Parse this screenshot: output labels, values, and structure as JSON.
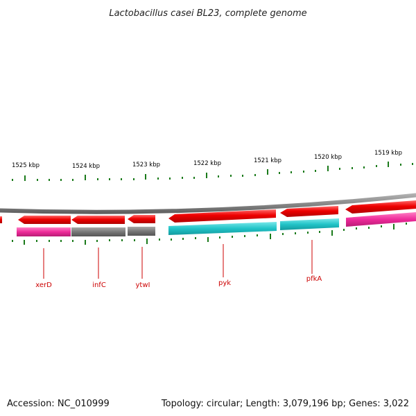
{
  "title": "Lactobacillus casei BL23, complete genome",
  "footer": {
    "accession": "Accession: NC_010999",
    "summary": "Topology: circular; Length: 3,079,196 bp; Genes: 3,022"
  },
  "scale_labels": [
    "1525 kbp",
    "1524 kbp",
    "1523 kbp",
    "1522 kbp",
    "1521 kbp",
    "1520 kbp",
    "1519 kbp"
  ],
  "gene_labels": [
    "xerD",
    "infC",
    "ytwI",
    "pyk",
    "pfkA"
  ],
  "colors": {
    "backbone": "#8a8a8a",
    "gene_arrow": "#ee0000",
    "tick": "#1a7a1a",
    "label": "#cc0000",
    "category_magenta": "#ee2a9a",
    "category_gray": "#777777",
    "category_cyan": "#22c4c8"
  }
}
